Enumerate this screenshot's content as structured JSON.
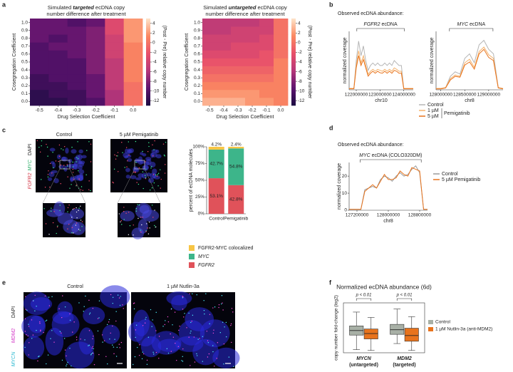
{
  "panel_labels": [
    "a",
    "b",
    "c",
    "d",
    "e",
    "f"
  ],
  "images": {
    "c": {
      "columns": [
        "Control",
        "5 µM Pemigatinib"
      ],
      "channels": [
        "DAPI",
        "MYC",
        "FGFR2"
      ]
    },
    "e": {
      "columns": [
        "Control",
        "1 µM Nutlin-3a"
      ],
      "channels": [
        "DAPI",
        "MDM2",
        "MYCN"
      ]
    }
  },
  "chart_data": [
    {
      "type": "heatmap",
      "title": [
        "Simulated ",
        "targeted",
        " ecDNA copy",
        "number difference after treatment"
      ],
      "xlabel": "Drug Selection Coefficient",
      "ylabel": "Cosegregation Coefficient",
      "x": [
        -0.5,
        -0.4,
        -0.3,
        -0.2,
        -0.1,
        0
      ],
      "y": [
        0,
        0.1,
        0.2,
        0.3,
        0.4,
        0.5,
        0.6,
        0.7,
        0.8,
        0.9,
        1
      ],
      "xlim": [
        -0.55,
        0.05
      ],
      "ylim": [
        -0.05,
        1.05
      ],
      "xticks": [
        -0.5,
        -0.4,
        -0.3,
        -0.2,
        -0.1,
        {
          "value": 0,
          "label": "0.0"
        }
      ],
      "yticks": [
        {
          "value": 0,
          "label": "0.0"
        },
        0.1,
        0.2,
        0.3,
        0.4,
        0.5,
        0.6,
        0.7,
        0.8,
        0.9,
        {
          "value": 1,
          "label": "1.0"
        }
      ],
      "z": [
        [
          -12,
          -12,
          -11,
          -10,
          -6,
          0
        ],
        [
          -12,
          -11,
          -11,
          -9,
          -6,
          0
        ],
        [
          -11,
          -11,
          -10,
          -9,
          -5,
          0
        ],
        [
          -11,
          -10,
          -10,
          -9,
          -5,
          1
        ],
        [
          -10,
          -10,
          -10,
          -8,
          -5,
          1
        ],
        [
          -10,
          -10,
          -10,
          -8,
          -5,
          1
        ],
        [
          -10,
          -10,
          -9,
          -8,
          -4,
          1
        ],
        [
          -10,
          -9,
          -9,
          -8,
          -4,
          1
        ],
        [
          -9,
          -10,
          -9,
          -8,
          -4,
          2
        ],
        [
          -9,
          -9,
          -9,
          -8,
          -3,
          2
        ],
        [
          -9,
          -9,
          -10,
          -9,
          -3,
          2
        ]
      ],
      "colorbar": {
        "label": "(Post - Pre) relative copy number",
        "lim": [
          -13,
          5
        ],
        "ticks": [
          4,
          2,
          0,
          -2,
          -4,
          -6,
          -8,
          -10,
          -12
        ],
        "colors": [
          "#1b0c41",
          "#5c126e",
          "#b5367a",
          "#e8506a",
          "#fb8861",
          "#fde3c8"
        ]
      }
    },
    {
      "type": "heatmap",
      "title": [
        "Simulated ",
        "untargeted",
        " ecDNA copy",
        "number difference after treatment"
      ],
      "xlabel": "Drug Selection Coefficient",
      "ylabel": "Cosegregation Coefficient",
      "x": [
        -0.5,
        -0.4,
        -0.3,
        -0.2,
        -0.1,
        0
      ],
      "y": [
        0,
        0.1,
        0.2,
        0.3,
        0.4,
        0.5,
        0.6,
        0.7,
        0.8,
        0.9,
        1
      ],
      "xlim": [
        -0.55,
        0.05
      ],
      "ylim": [
        -0.05,
        1.05
      ],
      "xticks": [
        -0.5,
        -0.4,
        -0.3,
        -0.2,
        -0.1,
        {
          "value": 0,
          "label": "0.0"
        }
      ],
      "yticks": [
        {
          "value": 0,
          "label": "0.0"
        },
        0.1,
        0.2,
        0.3,
        0.4,
        0.5,
        0.6,
        0.7,
        0.8,
        0.9,
        {
          "value": 1,
          "label": "1.0"
        }
      ],
      "z": [
        [
          3,
          3,
          3,
          2,
          2,
          1
        ],
        [
          2,
          2,
          2,
          2,
          1,
          1
        ],
        [
          1,
          1,
          1,
          1,
          1,
          1
        ],
        [
          0,
          0,
          0,
          0,
          0,
          1
        ],
        [
          -1,
          -1,
          -1,
          -1,
          -1,
          1
        ],
        [
          -2,
          -2,
          -2,
          -2,
          -2,
          1
        ],
        [
          -3,
          -3,
          -3,
          -3,
          -2,
          0
        ],
        [
          -4,
          -4,
          -3,
          -3,
          -3,
          0
        ],
        [
          -4,
          -4,
          -4,
          -4,
          -3,
          0
        ],
        [
          -5,
          -5,
          -4,
          -4,
          -4,
          0
        ],
        [
          -5,
          -5,
          -5,
          -5,
          -4,
          0
        ]
      ],
      "colorbar": {
        "label": "(Post - Pre) relative copy number",
        "lim": [
          -13,
          5
        ],
        "ticks": [
          4,
          2,
          0,
          -2,
          -4,
          -6,
          -8,
          -10,
          -12
        ],
        "colors": [
          "#1b0c41",
          "#5c126e",
          "#b5367a",
          "#e8506a",
          "#fb8861",
          "#fde3c8"
        ]
      }
    },
    {
      "type": "line",
      "header": "Observed ecDNA abundance:",
      "annotation": [
        "FGFR2",
        " ecDNA"
      ],
      "xlabel": "chr10",
      "ylabel": "normalized coverage",
      "legend_title": "Pemigatinib",
      "x": [
        121700000,
        121800000,
        121900000,
        122000000,
        122100000,
        122200000,
        122300000,
        122400000,
        122500000,
        122600000,
        122700000,
        122800000,
        122900000,
        123000000,
        123100000,
        123200000,
        123300000,
        123400000,
        123500000,
        123600000,
        123700000,
        123800000,
        123900000,
        124000000,
        124100000,
        124200000,
        124300000,
        124400000
      ],
      "xlim": [
        121700000,
        124400000
      ],
      "ylim": [
        0,
        12
      ],
      "xticks": [
        122000000,
        123000000,
        124000000
      ],
      "series": [
        {
          "name": "Control",
          "color": "#b5b5b5",
          "values": [
            0.3,
            0.3,
            0.3,
            6,
            10,
            7,
            9,
            6,
            4,
            5,
            5.5,
            5,
            5.5,
            5,
            5,
            5.5,
            5,
            5.5,
            5,
            6,
            5.5,
            5,
            5,
            0.3,
            0.3,
            0.3,
            0.3,
            0.3
          ]
        },
        {
          "name": "1 µM",
          "color": "#f5b26b",
          "values": [
            0.3,
            0.3,
            0.3,
            5,
            8,
            5.5,
            7,
            5,
            3.2,
            3.8,
            4.2,
            3.8,
            4.2,
            4,
            3.8,
            4.2,
            3.8,
            4.2,
            3.8,
            4.5,
            4.2,
            3.8,
            3.8,
            0.3,
            0.3,
            0.3,
            0.3,
            0.3
          ]
        },
        {
          "name": "5 µM",
          "color": "#e8731c",
          "values": [
            0.2,
            0.2,
            0.2,
            4.5,
            7,
            5,
            6.2,
            4.5,
            2.8,
            3.4,
            3.8,
            3.4,
            3.8,
            3.5,
            3.4,
            3.8,
            3.4,
            3.8,
            3.4,
            4,
            3.8,
            3.4,
            3.4,
            0.2,
            0.2,
            0.2,
            0.2,
            0.2
          ]
        }
      ]
    },
    {
      "type": "line",
      "annotation": [
        "MYC",
        " ecDNA"
      ],
      "xlabel": "chr8",
      "ylabel": "normalized coverage",
      "x": [
        127900000,
        128000000,
        128100000,
        128200000,
        128300000,
        128400000,
        128500000,
        128600000,
        128700000,
        128800000,
        128900000,
        129000000,
        129100000,
        129200000,
        129300000
      ],
      "xlim": [
        127900000,
        129300000
      ],
      "ylim": [
        0,
        13
      ],
      "xticks": [
        128000000,
        128500000,
        129000000
      ],
      "series": [
        {
          "color": "#b5b5b5",
          "values": [
            0.3,
            0.3,
            0.5,
            3,
            4,
            3.5,
            7,
            8,
            6,
            10,
            11,
            9,
            8,
            0.5,
            0.3
          ]
        },
        {
          "color": "#f5b26b",
          "values": [
            0.3,
            0.3,
            0.5,
            2.5,
            3.3,
            3,
            6,
            6.8,
            5,
            8.5,
            9.5,
            7.8,
            7,
            0.5,
            0.3
          ]
        },
        {
          "color": "#e8731c",
          "values": [
            0.2,
            0.2,
            0.4,
            2.2,
            3,
            2.8,
            5.5,
            6.2,
            4.6,
            8,
            9,
            7.2,
            6.5,
            0.4,
            0.2
          ]
        }
      ]
    },
    {
      "type": "stacked_bar",
      "categories": [
        "Control",
        "Pemigatinib"
      ],
      "ylabel": "percent of ecDNA molecules",
      "ylim": [
        0,
        100
      ],
      "yticks": [
        {
          "value": 0,
          "label": "0%"
        },
        {
          "value": 25,
          "label": "25%"
        },
        {
          "value": 50,
          "label": "50%"
        },
        {
          "value": 75,
          "label": "75%"
        },
        {
          "value": 100,
          "label": "100%"
        }
      ],
      "series": [
        {
          "name": "FGFR2",
          "color": "#e0525a",
          "values": [
            53.1,
            42.8
          ],
          "value_labels": [
            "53.1%",
            "42.8%"
          ]
        },
        {
          "name": "MYC",
          "color": "#3db58a",
          "values": [
            42.7,
            54.8
          ],
          "value_labels": [
            "42.7%",
            "54.8%"
          ]
        },
        {
          "name": "FGFR2-MYC colocalized",
          "color": "#f7c545",
          "values": [
            4.2,
            2.4
          ],
          "value_labels": [
            "4.2%",
            "2.4%"
          ]
        }
      ]
    },
    {
      "type": "line",
      "header": "Observed ecDNA abundance:",
      "annotation": [
        "MYC",
        " ecDNA (COLO320DM)"
      ],
      "xlabel": "chr8",
      "ylabel": "normalized coverage",
      "x": [
        127000000,
        127100000,
        127200000,
        127300000,
        127400000,
        127500000,
        127600000,
        127700000,
        127800000,
        127900000,
        128000000,
        128100000,
        128200000,
        128300000,
        128400000,
        128500000,
        128600000,
        128700000,
        128800000,
        128900000,
        129000000
      ],
      "xlim": [
        127000000,
        129000000
      ],
      "ylim": [
        0,
        28
      ],
      "xticks": [
        127200000,
        128000000,
        128800000
      ],
      "yticks": [
        0,
        10,
        20
      ],
      "series": [
        {
          "name": "Control",
          "color": "#9a9a9a",
          "values": [
            0.5,
            0.5,
            0.5,
            0.5,
            12,
            13,
            14,
            13,
            18,
            20,
            19,
            17,
            20,
            22,
            20,
            21,
            24,
            26,
            22,
            0.5,
            0.5
          ]
        },
        {
          "name": "5 µM Pemigatinib",
          "color": "#e8731c",
          "values": [
            0.5,
            0.5,
            0.5,
            0.5,
            11,
            13,
            15,
            13,
            17,
            21,
            18,
            18,
            19,
            23,
            21,
            20,
            25,
            24,
            23,
            0.5,
            0.5
          ]
        }
      ]
    },
    {
      "type": "box",
      "title": "Normalized ecDNA abundance (6d)",
      "ylabel": "copy number fold-change (log2)",
      "categories": [
        "MYCN",
        "MDM2"
      ],
      "category_notes": [
        "(untargeted)",
        "(targeted)"
      ],
      "annotations": [
        "p < 0.01",
        "p < 0.01"
      ],
      "ylim": [
        -3.2,
        3.3
      ],
      "series": [
        {
          "name": "Control",
          "color": "#a8b0a6",
          "boxes": [
            {
              "min": -2.8,
              "q1": -0.9,
              "median": -0.3,
              "q3": 0.3,
              "max": 2.1
            },
            {
              "min": -2.0,
              "q1": -0.8,
              "median": -0.2,
              "q3": 0.5,
              "max": 2.5
            }
          ]
        },
        {
          "name": "1 µM Nutlin-3a (anti-MDM2)",
          "color": "#e8731c",
          "boxes": [
            {
              "min": -2.9,
              "q1": -1.4,
              "median": -0.7,
              "q3": -0.1,
              "max": 1.4
            },
            {
              "min": -2.9,
              "q1": -1.7,
              "median": -0.95,
              "q3": 0.0,
              "max": 1.5
            }
          ]
        }
      ]
    }
  ]
}
